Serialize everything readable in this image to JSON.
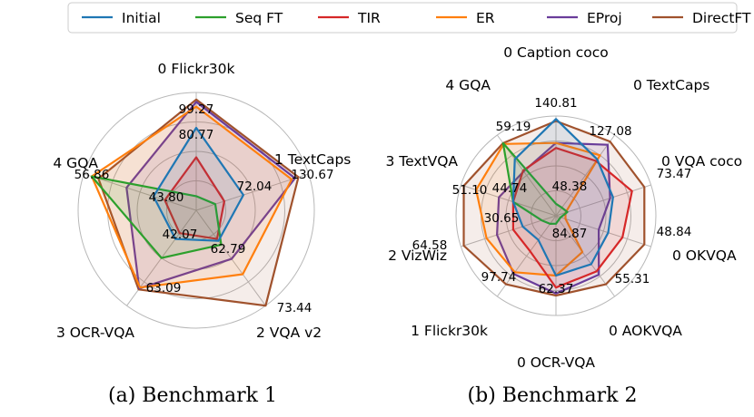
{
  "legend": {
    "entries": [
      {
        "name": "Initial",
        "color": "#1f77b4"
      },
      {
        "name": "Seq FT",
        "color": "#2ca02c"
      },
      {
        "name": "TIR",
        "color": "#d62728"
      },
      {
        "name": "ER",
        "color": "#ff7f0e"
      },
      {
        "name": "EProj",
        "color": "#6a3d9a"
      },
      {
        "name": "DirectFT",
        "color": "#a0522d"
      }
    ]
  },
  "chart_data": [
    {
      "type": "radar",
      "title": "(a) Benchmark 1",
      "axes": [
        "0 Flickr30k",
        "1 TextCaps",
        "2 VQA v2",
        "3 OCR-VQA",
        "4 GQA"
      ],
      "inner_labels": [
        [
          "99.27",
          "80.77"
        ],
        [
          "130.67",
          "72.04"
        ],
        [
          "73.44",
          "62.79"
        ],
        [
          "63.09",
          "42.07"
        ],
        [
          "56.86",
          "43.80"
        ]
      ],
      "series": [
        {
          "name": "Initial",
          "values": [
            0.7,
            0.42,
            0.32,
            0.3,
            0.38
          ]
        },
        {
          "name": "Seq FT",
          "values": [
            0.12,
            0.17,
            0.36,
            0.5,
            0.93
          ]
        },
        {
          "name": "TIR",
          "values": [
            0.45,
            0.25,
            0.3,
            0.24,
            0.28
          ]
        },
        {
          "name": "ER",
          "values": [
            0.88,
            0.85,
            0.67,
            0.81,
            0.93
          ]
        },
        {
          "name": "EProj",
          "values": [
            0.92,
            0.88,
            0.51,
            0.82,
            0.62
          ]
        },
        {
          "name": "DirectFT",
          "values": [
            0.94,
            0.91,
            1.0,
            0.83,
            0.87
          ]
        }
      ]
    },
    {
      "type": "radar",
      "title": "(b) Benchmark 2",
      "axes": [
        "0 Caption coco",
        "0 TextCaps",
        "0 VQA coco",
        "0 OKVQA",
        "0 AOKVQA",
        "0 OCR-VQA",
        "1 Flickr30k",
        "2 VizWiz",
        "3 TextVQA",
        "4 GQA"
      ],
      "inner_labels": [
        [
          "140.81"
        ],
        [
          "127.08"
        ],
        [
          "73.47"
        ],
        [
          "48.84"
        ],
        [
          "55.31"
        ],
        [
          "62.37"
        ],
        [
          "97.74",
          "84.87"
        ],
        [
          "64.58",
          "30.65"
        ],
        [
          "51.10",
          "44.74"
        ],
        [
          "59.19",
          "48.38"
        ]
      ],
      "series": [
        {
          "name": "Initial",
          "values": [
            0.97,
            0.7,
            0.6,
            0.55,
            0.6,
            0.6,
            0.3,
            0.35,
            0.45,
            0.7
          ]
        },
        {
          "name": "Seq FT",
          "values": [
            0.12,
            0.1,
            0.12,
            0.05,
            0.05,
            0.08,
            0.1,
            0.15,
            0.45,
            0.9
          ]
        },
        {
          "name": "TIR",
          "values": [
            0.68,
            0.68,
            0.8,
            0.7,
            0.69,
            0.72,
            0.44,
            0.45,
            0.45,
            0.56
          ]
        },
        {
          "name": "ER",
          "values": [
            0.73,
            0.75,
            0.1,
            0.1,
            0.45,
            0.6,
            0.7,
            0.73,
            0.84,
            0.89
          ]
        },
        {
          "name": "EProj",
          "values": [
            0.73,
            0.88,
            0.57,
            0.45,
            0.73,
            0.78,
            0.72,
            0.62,
            0.6,
            0.55
          ]
        },
        {
          "name": "DirectFT",
          "values": [
            0.95,
            0.92,
            0.93,
            0.93,
            0.85,
            0.8,
            0.85,
            0.97,
            0.97,
            0.9
          ]
        }
      ]
    }
  ]
}
